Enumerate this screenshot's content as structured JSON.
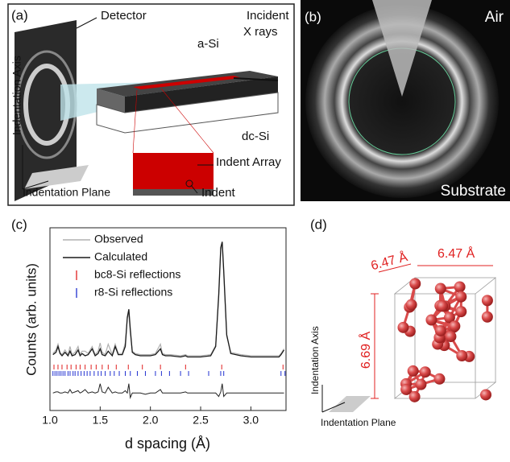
{
  "panel_a": {
    "label": "(a)",
    "detector": "Detector",
    "incident_line1": "Incident",
    "incident_line2": "X rays",
    "asi": "a-Si",
    "dcsi": "dc-Si",
    "indent_array": "Indent Array",
    "indent": "Indent",
    "axis_label": "Indentation Axis",
    "plane_label": "Indentation Plane"
  },
  "panel_b": {
    "label": "(b)",
    "air": "Air",
    "substrate": "Substrate"
  },
  "panel_c_label": "(c)",
  "chart_data": {
    "type": "line",
    "xlabel": "d spacing (Å)",
    "ylabel": "Counts (arb. units)",
    "xlim": [
      1.0,
      3.35
    ],
    "xticks": [
      {
        "value": 1.0,
        "label": "1.0"
      },
      {
        "value": 1.5,
        "label": "1.5"
      },
      {
        "value": 2.0,
        "label": "2.0"
      },
      {
        "value": 2.5,
        "label": "2.5"
      },
      {
        "value": 3.0,
        "label": "3.0"
      }
    ],
    "ylim": [
      -0.45,
      1.12
    ],
    "x": [
      1.03,
      1.06,
      1.08,
      1.1,
      1.12,
      1.15,
      1.18,
      1.2,
      1.22,
      1.25,
      1.28,
      1.3,
      1.32,
      1.35,
      1.38,
      1.42,
      1.45,
      1.48,
      1.5,
      1.52,
      1.55,
      1.58,
      1.62,
      1.65,
      1.68,
      1.72,
      1.75,
      1.77,
      1.785,
      1.8,
      1.82,
      1.85,
      1.9,
      1.95,
      2.0,
      2.05,
      2.1,
      2.12,
      2.15,
      2.2,
      2.3,
      2.35,
      2.37,
      2.4,
      2.5,
      2.6,
      2.65,
      2.68,
      2.7,
      2.715,
      2.73,
      2.76,
      2.8,
      2.9,
      3.0,
      3.1,
      3.2,
      3.28,
      3.3,
      3.33
    ],
    "series": [
      {
        "name": "Observed",
        "color": "#b0b0b0",
        "values": [
          0.04,
          0.07,
          0.12,
          0.05,
          0.03,
          0.07,
          0.03,
          0.1,
          0.03,
          0.05,
          0.1,
          0.03,
          0.06,
          0.06,
          0.04,
          0.1,
          0.03,
          0.06,
          0.13,
          0.05,
          0.03,
          0.12,
          0.03,
          0.12,
          0.04,
          0.04,
          0.13,
          0.34,
          0.38,
          0.22,
          0.06,
          0.04,
          0.03,
          0.03,
          0.03,
          0.04,
          0.12,
          0.04,
          0.03,
          0.03,
          0.02,
          0.03,
          0.02,
          0.02,
          0.02,
          0.03,
          0.11,
          0.52,
          0.93,
          0.98,
          0.72,
          0.19,
          0.05,
          0.03,
          0.02,
          0.02,
          0.02,
          0.02,
          0.04,
          0.08
        ]
      },
      {
        "name": "Calculated",
        "color": "#1a1a1a",
        "values": [
          0.03,
          0.05,
          0.1,
          0.04,
          0.02,
          0.05,
          0.02,
          0.06,
          0.02,
          0.03,
          0.07,
          0.02,
          0.04,
          0.02,
          0.03,
          0.08,
          0.02,
          0.04,
          0.08,
          0.03,
          0.02,
          0.06,
          0.02,
          0.1,
          0.03,
          0.03,
          0.1,
          0.35,
          0.42,
          0.25,
          0.05,
          0.03,
          0.02,
          0.02,
          0.02,
          0.03,
          0.08,
          0.03,
          0.02,
          0.02,
          0.01,
          0.02,
          0.01,
          0.01,
          0.01,
          0.02,
          0.1,
          0.55,
          0.95,
          1.0,
          0.75,
          0.2,
          0.04,
          0.02,
          0.01,
          0.01,
          0.01,
          0.01,
          0.03,
          0.07
        ]
      }
    ],
    "difference": {
      "color": "#222222",
      "values": [
        -0.3,
        -0.29,
        -0.29,
        -0.3,
        -0.3,
        -0.29,
        -0.3,
        -0.27,
        -0.3,
        -0.29,
        -0.28,
        -0.3,
        -0.29,
        -0.27,
        -0.3,
        -0.29,
        -0.3,
        -0.29,
        -0.22,
        -0.29,
        -0.3,
        -0.25,
        -0.3,
        -0.29,
        -0.3,
        -0.3,
        -0.28,
        -0.3,
        -0.22,
        -0.34,
        -0.3,
        -0.3,
        -0.3,
        -0.31,
        -0.3,
        -0.3,
        -0.27,
        -0.3,
        -0.3,
        -0.3,
        -0.3,
        -0.29,
        -0.3,
        -0.3,
        -0.3,
        -0.3,
        -0.3,
        -0.33,
        -0.29,
        -0.22,
        -0.33,
        -0.3,
        -0.3,
        -0.3,
        -0.3,
        -0.3,
        -0.3,
        -0.3,
        -0.3,
        -0.3
      ]
    },
    "reflections": [
      {
        "name": "bc8-Si reflections",
        "color": "#e02020",
        "positions": [
          1.04,
          1.08,
          1.12,
          1.17,
          1.21,
          1.26,
          1.3,
          1.35,
          1.41,
          1.46,
          1.52,
          1.58,
          1.66,
          1.78,
          1.92,
          2.1,
          2.35,
          2.71,
          3.32
        ]
      },
      {
        "name": "r8-Si reflections",
        "color": "#2030d0",
        "positions": [
          1.03,
          1.05,
          1.07,
          1.09,
          1.11,
          1.13,
          1.15,
          1.18,
          1.2,
          1.23,
          1.25,
          1.28,
          1.31,
          1.34,
          1.37,
          1.4,
          1.44,
          1.48,
          1.51,
          1.55,
          1.6,
          1.64,
          1.69,
          1.75,
          1.8,
          1.87,
          1.95,
          2.05,
          2.11,
          2.19,
          2.3,
          2.38,
          2.58,
          2.7,
          2.73,
          3.3,
          3.34
        ]
      }
    ]
  },
  "panel_d": {
    "label": "(d)",
    "dim_a": "6.47 Å",
    "dim_b": "6.47 Å",
    "dim_c": "6.69 Å",
    "axis_label": "Indentation Axis",
    "plane_label": "Indentation Plane"
  }
}
